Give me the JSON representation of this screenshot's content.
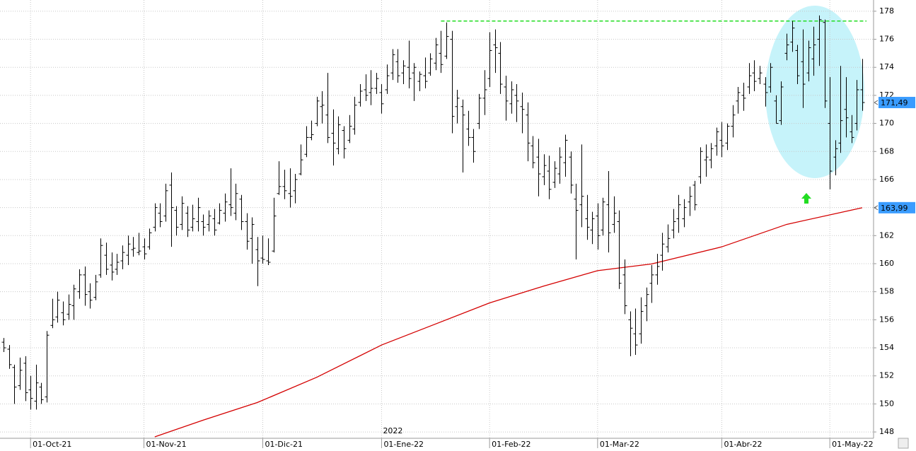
{
  "chart_data": {
    "type": "ohlc",
    "categories": [
      null,
      null,
      null,
      null,
      null,
      "01-Oct-21",
      null,
      null,
      null,
      null,
      null,
      null,
      null,
      null,
      null,
      null,
      null,
      null,
      null,
      null,
      null,
      null,
      null,
      null,
      null,
      null,
      "01-Nov-21",
      null,
      null,
      null,
      null,
      null,
      null,
      null,
      null,
      null,
      null,
      null,
      null,
      null,
      null,
      null,
      null,
      null,
      null,
      null,
      null,
      null,
      "01-Dic-21",
      null,
      null,
      null,
      null,
      null,
      null,
      null,
      null,
      null,
      null,
      null,
      null,
      null,
      null,
      null,
      null,
      null,
      null,
      null,
      null,
      null,
      "01-Ene-22",
      null,
      null,
      null,
      null,
      null,
      null,
      null,
      null,
      null,
      null,
      null,
      null,
      null,
      null,
      null,
      null,
      null,
      null,
      null,
      "01-Feb-22",
      null,
      null,
      null,
      null,
      null,
      null,
      null,
      null,
      null,
      null,
      null,
      null,
      null,
      null,
      null,
      null,
      null,
      null,
      null,
      "01-Mar-22",
      null,
      null,
      null,
      null,
      null,
      null,
      null,
      null,
      null,
      null,
      null,
      null,
      null,
      null,
      null,
      null,
      null,
      null,
      null,
      null,
      null,
      null,
      "01-Abr-22",
      null,
      null,
      null,
      null,
      null,
      null,
      null,
      null,
      null,
      null,
      null,
      null,
      null,
      null,
      null,
      null,
      null,
      null,
      null,
      "01-May-22",
      null,
      null,
      null,
      null,
      null,
      null
    ],
    "ohlc": [
      [
        154.4,
        154.7,
        153.7,
        154.0
      ],
      [
        153.9,
        154.2,
        152.5,
        152.8
      ],
      [
        152.6,
        152.8,
        150.0,
        151.2
      ],
      [
        151.3,
        153.3,
        151.0,
        152.4
      ],
      [
        152.9,
        153.4,
        150.2,
        150.8
      ],
      [
        151.0,
        152.0,
        149.6,
        150.4
      ],
      [
        150.2,
        152.8,
        149.6,
        151.5
      ],
      [
        151.2,
        151.5,
        150.0,
        150.3
      ],
      [
        150.5,
        155.2,
        150.1,
        154.9
      ],
      [
        155.6,
        157.5,
        155.4,
        156.0
      ],
      [
        156.2,
        158.0,
        155.8,
        157.4
      ],
      [
        156.5,
        157.3,
        155.6,
        156.0
      ],
      [
        156.4,
        157.8,
        156.0,
        157.1
      ],
      [
        157.0,
        158.5,
        156.0,
        158.2
      ],
      [
        158.0,
        159.6,
        157.5,
        159.2
      ],
      [
        159.2,
        159.8,
        157.0,
        157.8
      ],
      [
        158.0,
        158.6,
        156.8,
        157.4
      ],
      [
        157.6,
        159.2,
        157.4,
        158.7
      ],
      [
        159.2,
        161.8,
        159.0,
        161.3
      ],
      [
        160.6,
        161.5,
        159.2,
        159.6
      ],
      [
        159.9,
        160.8,
        158.8,
        159.4
      ],
      [
        159.6,
        160.7,
        159.2,
        160.1
      ],
      [
        160.2,
        161.3,
        159.6,
        160.8
      ],
      [
        160.6,
        162.0,
        159.9,
        161.4
      ],
      [
        161.0,
        161.9,
        160.5,
        161.1
      ],
      [
        160.8,
        162.2,
        160.6,
        160.9
      ],
      [
        161.2,
        161.8,
        160.3,
        160.7
      ],
      [
        161.2,
        162.5,
        161.0,
        162.2
      ],
      [
        162.6,
        164.3,
        162.3,
        164.0
      ],
      [
        163.6,
        164.3,
        162.6,
        163.0
      ],
      [
        163.4,
        165.7,
        163.0,
        165.2
      ],
      [
        165.6,
        166.5,
        161.2,
        164.0
      ],
      [
        163.8,
        164.1,
        162.0,
        162.6
      ],
      [
        162.8,
        164.8,
        162.4,
        164.3
      ],
      [
        163.6,
        164.1,
        161.9,
        162.4
      ],
      [
        162.6,
        164.2,
        162.3,
        163.2
      ],
      [
        163.0,
        164.7,
        162.3,
        164.0
      ],
      [
        163.0,
        163.5,
        162.0,
        162.6
      ],
      [
        162.8,
        163.8,
        162.3,
        163.4
      ],
      [
        163.2,
        163.9,
        162.0,
        162.4
      ],
      [
        162.9,
        164.3,
        162.8,
        163.8
      ],
      [
        163.6,
        165.0,
        163.0,
        164.4
      ],
      [
        164.2,
        166.8,
        163.4,
        164.0
      ],
      [
        163.6,
        165.7,
        163.1,
        165.0
      ],
      [
        164.6,
        164.9,
        162.4,
        163.0
      ],
      [
        163.0,
        163.6,
        161.0,
        161.6
      ],
      [
        161.8,
        163.3,
        160.0,
        162.8
      ],
      [
        161.0,
        161.9,
        158.4,
        160.2
      ],
      [
        160.4,
        162.0,
        160.0,
        160.3
      ],
      [
        160.2,
        161.8,
        159.9,
        160.1
      ],
      [
        160.9,
        164.7,
        160.8,
        163.4
      ],
      [
        165.0,
        167.3,
        164.9,
        165.5
      ],
      [
        165.5,
        166.7,
        164.6,
        165.2
      ],
      [
        165.0,
        166.8,
        164.0,
        164.8
      ],
      [
        165.2,
        166.4,
        164.3,
        166.0
      ],
      [
        166.4,
        168.5,
        166.3,
        167.4
      ],
      [
        167.8,
        169.8,
        167.6,
        169.0
      ],
      [
        169.0,
        170.2,
        168.8,
        169.2
      ],
      [
        170.0,
        171.9,
        169.8,
        171.6
      ],
      [
        171.2,
        172.3,
        170.0,
        171.3
      ],
      [
        170.6,
        173.6,
        168.6,
        169.0
      ],
      [
        169.3,
        171.0,
        167.0,
        168.6
      ],
      [
        168.2,
        170.5,
        167.8,
        169.9
      ],
      [
        169.5,
        169.8,
        167.5,
        168.2
      ],
      [
        168.8,
        170.6,
        168.6,
        169.8
      ],
      [
        169.6,
        171.9,
        169.2,
        171.3
      ],
      [
        171.5,
        172.8,
        171.2,
        172.3
      ],
      [
        172.4,
        173.5,
        171.6,
        172.0
      ],
      [
        172.2,
        173.8,
        171.3,
        172.5
      ],
      [
        172.5,
        173.6,
        172.1,
        173.2
      ],
      [
        172.2,
        172.8,
        170.7,
        171.4
      ],
      [
        172.4,
        174.2,
        172.1,
        173.4
      ],
      [
        173.6,
        175.3,
        173.1,
        174.9
      ],
      [
        174.4,
        175.3,
        172.9,
        173.4
      ],
      [
        173.6,
        174.5,
        172.8,
        174.1
      ],
      [
        174.0,
        175.9,
        172.5,
        173.2
      ],
      [
        173.6,
        174.3,
        171.6,
        174.0
      ],
      [
        173.0,
        173.7,
        172.3,
        173.5
      ],
      [
        173.4,
        174.7,
        172.5,
        173.0
      ],
      [
        173.6,
        175.0,
        173.4,
        174.6
      ],
      [
        174.3,
        176.1,
        173.8,
        175.6
      ],
      [
        175.0,
        176.6,
        173.6,
        174.2
      ],
      [
        174.8,
        177.2,
        174.6,
        176.2
      ],
      [
        176.0,
        176.6,
        169.3,
        170.5
      ],
      [
        171.2,
        172.4,
        170.0,
        171.8
      ],
      [
        171.2,
        171.7,
        166.5,
        170.6
      ],
      [
        169.6,
        170.9,
        168.4,
        169.0
      ],
      [
        169.0,
        169.6,
        167.2,
        168.0
      ],
      [
        170.0,
        172.1,
        169.6,
        171.8
      ],
      [
        171.8,
        173.8,
        170.6,
        172.4
      ],
      [
        173.2,
        176.5,
        172.6,
        175.2
      ],
      [
        175.6,
        176.7,
        173.6,
        175.4
      ],
      [
        175.0,
        175.8,
        172.1,
        172.8
      ],
      [
        172.6,
        173.4,
        170.2,
        171.6
      ],
      [
        171.4,
        173.0,
        170.7,
        172.4
      ],
      [
        172.0,
        172.8,
        170.1,
        171.6
      ],
      [
        171.2,
        172.2,
        169.3,
        171.0
      ],
      [
        170.6,
        171.5,
        167.3,
        168.6
      ],
      [
        168.4,
        169.1,
        166.8,
        167.2
      ],
      [
        167.6,
        168.9,
        164.8,
        166.4
      ],
      [
        166.2,
        167.8,
        165.6,
        167.0
      ],
      [
        166.6,
        167.7,
        164.6,
        165.3
      ],
      [
        165.8,
        167.3,
        165.4,
        166.8
      ],
      [
        166.4,
        168.3,
        165.7,
        167.6
      ],
      [
        167.2,
        169.2,
        166.2,
        168.8
      ],
      [
        167.6,
        168.0,
        165.0,
        165.6
      ],
      [
        164.6,
        165.7,
        160.3,
        163.8
      ],
      [
        164.2,
        168.5,
        162.6,
        164.8
      ],
      [
        163.2,
        164.9,
        161.7,
        162.6
      ],
      [
        162.4,
        163.7,
        161.4,
        163.2
      ],
      [
        163.4,
        164.3,
        161.0,
        162.0
      ],
      [
        162.4,
        164.7,
        162.0,
        164.4
      ],
      [
        164.2,
        166.6,
        160.8,
        162.2
      ],
      [
        162.8,
        164.8,
        162.2,
        163.6
      ],
      [
        163.0,
        163.8,
        158.2,
        158.6
      ],
      [
        159.2,
        160.3,
        156.4,
        157.0
      ],
      [
        156.0,
        156.6,
        153.4,
        155.4
      ],
      [
        155.0,
        156.8,
        153.5,
        154.2
      ],
      [
        155.0,
        157.6,
        154.3,
        156.6
      ],
      [
        157.0,
        158.3,
        155.9,
        157.8
      ],
      [
        158.6,
        159.9,
        157.2,
        159.2
      ],
      [
        159.2,
        160.7,
        158.5,
        159.8
      ],
      [
        160.6,
        162.2,
        159.5,
        161.4
      ],
      [
        161.2,
        162.8,
        160.8,
        161.8
      ],
      [
        162.4,
        163.9,
        161.8,
        163.0
      ],
      [
        163.2,
        164.9,
        162.2,
        164.2
      ],
      [
        163.2,
        164.6,
        162.6,
        164.0
      ],
      [
        164.4,
        165.5,
        163.4,
        164.8
      ],
      [
        165.6,
        165.9,
        163.8,
        164.2
      ],
      [
        166.2,
        168.3,
        165.7,
        168.0
      ],
      [
        167.4,
        168.5,
        166.2,
        167.6
      ],
      [
        167.4,
        168.6,
        166.8,
        168.2
      ],
      [
        168.4,
        169.7,
        167.7,
        169.4
      ],
      [
        168.8,
        170.1,
        167.6,
        168.4
      ],
      [
        168.6,
        170.0,
        168.1,
        169.8
      ],
      [
        169.8,
        171.3,
        169.0,
        170.6
      ],
      [
        171.6,
        172.6,
        170.7,
        172.2
      ],
      [
        172.0,
        172.9,
        170.9,
        171.8
      ],
      [
        172.6,
        174.3,
        172.1,
        173.4
      ],
      [
        173.6,
        174.5,
        172.3,
        173.0
      ],
      [
        173.2,
        174.1,
        172.8,
        173.6
      ],
      [
        172.8,
        173.3,
        171.2,
        172.2
      ],
      [
        172.6,
        174.3,
        172.2,
        174.0
      ],
      [
        171.6,
        172.0,
        170.0,
        170.0
      ],
      [
        170.2,
        173.0,
        169.9,
        172.6
      ],
      [
        175.0,
        176.4,
        174.5,
        175.6
      ],
      [
        175.8,
        177.3,
        175.1,
        176.8
      ],
      [
        175.2,
        175.6,
        172.8,
        173.4
      ],
      [
        174.4,
        176.7,
        171.1,
        172.8
      ],
      [
        173.6,
        175.9,
        173.0,
        175.4
      ],
      [
        174.6,
        176.9,
        173.4,
        175.6
      ],
      [
        176.0,
        177.7,
        174.1,
        177.4
      ],
      [
        177.2,
        177.4,
        171.1,
        171.6
      ],
      [
        170.0,
        173.3,
        165.3,
        166.6
      ],
      [
        167.6,
        168.8,
        166.3,
        168.2
      ],
      [
        168.6,
        174.1,
        167.9,
        170.2
      ],
      [
        171.0,
        173.3,
        169.0,
        170.4
      ],
      [
        169.4,
        170.6,
        168.6,
        169.0
      ],
      [
        170.0,
        173.1,
        169.5,
        172.4
      ],
      [
        172.4,
        174.6,
        170.9,
        171.49
      ]
    ],
    "bar_color": "#000000",
    "moving_average": {
      "color": "#d40000",
      "x": [
        28,
        37,
        47,
        58,
        70,
        80,
        90,
        100,
        110,
        120,
        133,
        145,
        159
      ],
      "values": [
        147.65,
        148.85,
        150.1,
        151.9,
        154.2,
        155.7,
        157.2,
        158.4,
        159.5,
        159.98,
        161.2,
        162.8,
        163.99
      ]
    },
    "resistance": {
      "value": 177.3,
      "color": "#22dd22"
    },
    "last_price": {
      "value": 171.49,
      "label": "171,49"
    },
    "ma_last": {
      "value": 163.99,
      "label": "163,99"
    },
    "year_label": "2022",
    "ylim": [
      147.55,
      178.8
    ],
    "yticks": [
      148,
      150,
      152,
      154,
      156,
      158,
      160,
      162,
      164,
      166,
      168,
      170,
      172,
      174,
      176,
      178
    ],
    "grid": true
  }
}
